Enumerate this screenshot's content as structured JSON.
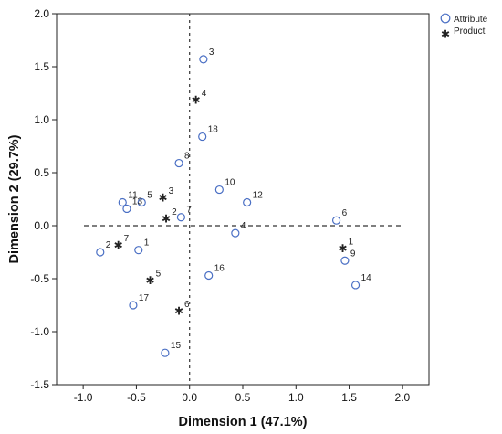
{
  "chart_data": {
    "type": "scatter",
    "xlabel": "Dimension 1 (47.1%)",
    "ylabel": "Dimension 2 (29.7%)",
    "xlim": [
      -1.25,
      2.25
    ],
    "ylim": [
      -1.5,
      2.0
    ],
    "x_ticks": [
      "-1.0",
      "-0.5",
      "0.0",
      "0.5",
      "1.0",
      "1.5",
      "2.0"
    ],
    "y_ticks": [
      "2.0",
      "1.5",
      "1.0",
      "0.5",
      "0.0",
      "-0.5",
      "-1.0",
      "-1.5"
    ],
    "x_tick_values": [
      -1.0,
      -0.5,
      0.0,
      0.5,
      1.0,
      1.5,
      2.0
    ],
    "y_tick_values": [
      2.0,
      1.5,
      1.0,
      0.5,
      0.0,
      -0.5,
      -1.0,
      -1.5
    ],
    "reference_lines": {
      "x": 0,
      "y": 0,
      "style": "dashed"
    },
    "legend": {
      "position": "top-right",
      "marker_colors": {
        "Attribute": "#4a6fc4",
        "Product": "#222222"
      }
    },
    "series": [
      {
        "name": "Attribute",
        "marker": "open-circle",
        "color": "#4a6fc4",
        "points": [
          {
            "label": "1",
            "x": -0.48,
            "y": -0.23
          },
          {
            "label": "2",
            "x": -0.84,
            "y": -0.25
          },
          {
            "label": "3",
            "x": 0.13,
            "y": 1.57
          },
          {
            "label": "4",
            "x": 0.43,
            "y": -0.07
          },
          {
            "label": "5",
            "x": -0.45,
            "y": 0.22
          },
          {
            "label": "6",
            "x": 1.38,
            "y": 0.05
          },
          {
            "label": "7",
            "x": -0.08,
            "y": 0.08
          },
          {
            "label": "8",
            "x": -0.1,
            "y": 0.59
          },
          {
            "label": "9",
            "x": 1.46,
            "y": -0.33
          },
          {
            "label": "10",
            "x": 0.28,
            "y": 0.34
          },
          {
            "label": "11",
            "x": -0.63,
            "y": 0.22
          },
          {
            "label": "12",
            "x": 0.54,
            "y": 0.22
          },
          {
            "label": "13",
            "x": -0.59,
            "y": 0.16
          },
          {
            "label": "14",
            "x": 1.56,
            "y": -0.56
          },
          {
            "label": "15",
            "x": -0.23,
            "y": -1.2
          },
          {
            "label": "16",
            "x": 0.18,
            "y": -0.47
          },
          {
            "label": "17",
            "x": -0.53,
            "y": -0.75
          },
          {
            "label": "18",
            "x": 0.12,
            "y": 0.84
          }
        ]
      },
      {
        "name": "Product",
        "marker": "star",
        "color": "#222222",
        "points": [
          {
            "label": "1",
            "x": 1.44,
            "y": -0.22
          },
          {
            "label": "2",
            "x": -0.22,
            "y": 0.06
          },
          {
            "label": "3",
            "x": -0.25,
            "y": 0.26
          },
          {
            "label": "4",
            "x": 0.06,
            "y": 1.18
          },
          {
            "label": "5",
            "x": -0.37,
            "y": -0.52
          },
          {
            "label": "6",
            "x": -0.1,
            "y": -0.81
          },
          {
            "label": "7",
            "x": -0.67,
            "y": -0.19
          }
        ]
      }
    ]
  }
}
